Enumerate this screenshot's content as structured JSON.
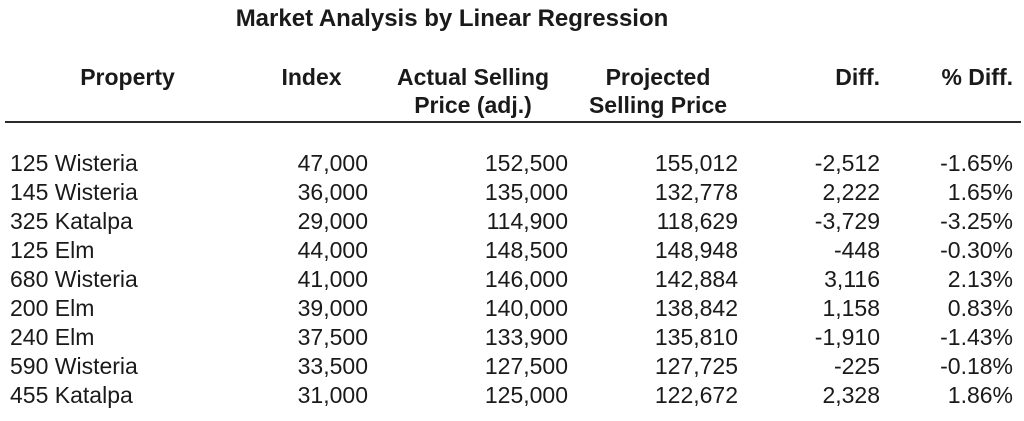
{
  "title": "Market Analysis by Linear Regression",
  "colors": {
    "background": "#ffffff",
    "text": "#1a1a1a",
    "header_rule": "#2b2b2b"
  },
  "table": {
    "headers": [
      {
        "label": "Property",
        "line1": "Property",
        "line2": ""
      },
      {
        "label": "Index",
        "line1": "Index",
        "line2": ""
      },
      {
        "label": "Actual Selling Price (adj.)",
        "line1": "Actual Selling",
        "line2": "Price (adj.)"
      },
      {
        "label": "Projected Selling Price",
        "line1": "Projected",
        "line2": "Selling Price"
      },
      {
        "label": "Diff.",
        "line1": "Diff.",
        "line2": ""
      },
      {
        "label": "% Diff.",
        "line1": "% Diff.",
        "line2": ""
      }
    ],
    "rows": [
      [
        "125 Wisteria",
        "47,000",
        "152,500",
        "155,012",
        "-2,512",
        "-1.65%"
      ],
      [
        "145 Wisteria",
        "36,000",
        "135,000",
        "132,778",
        "2,222",
        "1.65%"
      ],
      [
        "325 Katalpa",
        "29,000",
        "114,900",
        "118,629",
        "-3,729",
        "-3.25%"
      ],
      [
        "125 Elm",
        "44,000",
        "148,500",
        "148,948",
        "-448",
        "-0.30%"
      ],
      [
        "680 Wisteria",
        "41,000",
        "146,000",
        "142,884",
        "3,116",
        "2.13%"
      ],
      [
        "200 Elm",
        "39,000",
        "140,000",
        "138,842",
        "1,158",
        "0.83%"
      ],
      [
        "240 Elm",
        "37,500",
        "133,900",
        "135,810",
        "-1,910",
        "-1.43%"
      ],
      [
        "590 Wisteria",
        "33,500",
        "127,500",
        "127,725",
        "-225",
        "-0.18%"
      ],
      [
        "455 Katalpa",
        "31,000",
        "125,000",
        "122,672",
        "2,328",
        "1.86%"
      ]
    ]
  },
  "chart_data": {
    "type": "table",
    "title": "Market Analysis by Linear Regression",
    "columns": [
      "Property",
      "Index",
      "Actual Selling Price (adj.)",
      "Projected Selling Price",
      "Diff.",
      "% Diff."
    ],
    "rows": [
      {
        "property": "125 Wisteria",
        "index": 47000,
        "actual_selling_price_adj": 152500,
        "projected_selling_price": 155012,
        "diff": -2512,
        "pct_diff": -1.65
      },
      {
        "property": "145 Wisteria",
        "index": 36000,
        "actual_selling_price_adj": 135000,
        "projected_selling_price": 132778,
        "diff": 2222,
        "pct_diff": 1.65
      },
      {
        "property": "325 Katalpa",
        "index": 29000,
        "actual_selling_price_adj": 114900,
        "projected_selling_price": 118629,
        "diff": -3729,
        "pct_diff": -3.25
      },
      {
        "property": "125 Elm",
        "index": 44000,
        "actual_selling_price_adj": 148500,
        "projected_selling_price": 148948,
        "diff": -448,
        "pct_diff": -0.3
      },
      {
        "property": "680 Wisteria",
        "index": 41000,
        "actual_selling_price_adj": 146000,
        "projected_selling_price": 142884,
        "diff": 3116,
        "pct_diff": 2.13
      },
      {
        "property": "200 Elm",
        "index": 39000,
        "actual_selling_price_adj": 140000,
        "projected_selling_price": 138842,
        "diff": 1158,
        "pct_diff": 0.83
      },
      {
        "property": "240 Elm",
        "index": 37500,
        "actual_selling_price_adj": 133900,
        "projected_selling_price": 135810,
        "diff": -1910,
        "pct_diff": -1.43
      },
      {
        "property": "590 Wisteria",
        "index": 33500,
        "actual_selling_price_adj": 127500,
        "projected_selling_price": 127725,
        "diff": -225,
        "pct_diff": -0.18
      },
      {
        "property": "455 Katalpa",
        "index": 31000,
        "actual_selling_price_adj": 125000,
        "projected_selling_price": 122672,
        "diff": 2328,
        "pct_diff": 1.86
      }
    ]
  }
}
